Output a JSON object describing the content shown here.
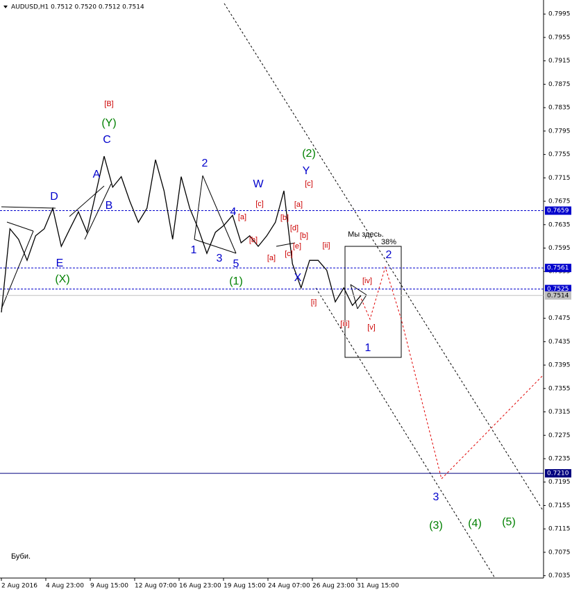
{
  "chart_data": {
    "type": "line",
    "title": "AUDUSD,H1 0.7512 0.7520 0.7512 0.7514",
    "color": "#000000",
    "values": [
      0.7485,
      0.7628,
      0.761,
      0.7574,
      0.7616,
      0.7628,
      0.7663,
      0.7598,
      0.7628,
      0.7657,
      0.7622,
      0.7687,
      0.7752,
      0.7699,
      0.7717,
      0.7675,
      0.7639,
      0.7663,
      0.7746,
      0.7693,
      0.761,
      0.7717,
      0.7663,
      0.7628,
      0.7586,
      0.7622,
      0.7634,
      0.7651,
      0.7604,
      0.7616,
      0.7598,
      0.7616,
      0.7639,
      0.7693,
      0.7568,
      0.7527,
      0.7574,
      0.7574,
      0.7557,
      0.7503,
      0.7527,
      0.7497,
      0.7514
    ],
    "x_labels": [
      "2 Aug 2016",
      "4 Aug 23:00",
      "9 Aug 15:00",
      "12 Aug 07:00",
      "16 Aug 23:00",
      "19 Aug 15:00",
      "24 Aug 07:00",
      "26 Aug 23:00",
      "31 Aug 15:00"
    ],
    "ylim": [
      0.7031,
      0.8019
    ],
    "yticks": [
      0.7995,
      0.7955,
      0.7915,
      0.7875,
      0.7835,
      0.7795,
      0.7755,
      0.7715,
      0.7675,
      0.7635,
      0.7595,
      0.7555,
      0.7475,
      0.7435,
      0.7395,
      0.7355,
      0.7315,
      0.7275,
      0.7235,
      0.7195,
      0.7155,
      0.7115,
      0.7075,
      0.7035
    ],
    "levels": [
      {
        "value": 0.7659,
        "color": "#0000cc",
        "dash": true
      },
      {
        "value": 0.7561,
        "color": "#0000cc",
        "dash": true
      },
      {
        "value": 0.7525,
        "color": "#0000cc",
        "dash": true
      },
      {
        "value": 0.7514,
        "color": "#c0c0c0",
        "dash": false
      },
      {
        "value": 0.721,
        "label": "0.7210",
        "color": "#00007f",
        "dash": false
      }
    ],
    "annotations": [
      {
        "text": "[B]",
        "color": "#cc0000"
      },
      {
        "text": "(Y)",
        "color": "#008000"
      },
      {
        "text": "C",
        "color": "#0000cc"
      },
      {
        "text": "A",
        "color": "#0000cc"
      },
      {
        "text": "B",
        "color": "#0000cc"
      },
      {
        "text": "D",
        "color": "#0000cc"
      },
      {
        "text": "E",
        "color": "#0000cc"
      },
      {
        "text": "(X)",
        "color": "#008000"
      },
      {
        "text": "2",
        "color": "#0000cc"
      },
      {
        "text": "1",
        "color": "#0000cc"
      },
      {
        "text": "3",
        "color": "#0000cc"
      },
      {
        "text": "5",
        "color": "#0000cc"
      },
      {
        "text": "4",
        "color": "#0000cc"
      },
      {
        "text": "(1)",
        "color": "#008000"
      },
      {
        "text": "W",
        "color": "#0000cc"
      },
      {
        "text": "[c]",
        "color": "#cc0000"
      },
      {
        "text": "[a]",
        "color": "#cc0000"
      },
      {
        "text": "[b]",
        "color": "#cc0000"
      },
      {
        "text": "[a]",
        "color": "#cc0000"
      },
      {
        "text": "[b]",
        "color": "#cc0000"
      },
      {
        "text": "[c]",
        "color": "#cc0000"
      },
      {
        "text": "[d]",
        "color": "#cc0000"
      },
      {
        "text": "[e]",
        "color": "#cc0000"
      },
      {
        "text": "[b]",
        "color": "#cc0000"
      },
      {
        "text": "[a]",
        "color": "#cc0000"
      },
      {
        "text": "[c]",
        "color": "#cc0000"
      },
      {
        "text": "Y",
        "color": "#0000cc"
      },
      {
        "text": "(2)",
        "color": "#008000"
      },
      {
        "text": "X",
        "color": "#0000cc"
      },
      {
        "text": "[i]",
        "color": "#cc0000"
      },
      {
        "text": "[ii]",
        "color": "#cc0000"
      },
      {
        "text": "[iii]",
        "color": "#cc0000"
      },
      {
        "text": "[iv]",
        "color": "#cc0000"
      },
      {
        "text": "[v]",
        "color": "#cc0000"
      },
      {
        "text": "1",
        "color": "#0000cc"
      },
      {
        "text": "2",
        "color": "#0000cc"
      },
      {
        "text": "3",
        "color": "#0000cc"
      },
      {
        "text": "(3)",
        "color": "#008000"
      },
      {
        "text": "(4)",
        "color": "#008000"
      },
      {
        "text": "(5)",
        "color": "#008000"
      },
      {
        "text": "Мы здесь.",
        "color": "#000000"
      },
      {
        "text": "38%",
        "color": "#000000"
      },
      {
        "text": "Буби.",
        "color": "#000000"
      }
    ]
  }
}
